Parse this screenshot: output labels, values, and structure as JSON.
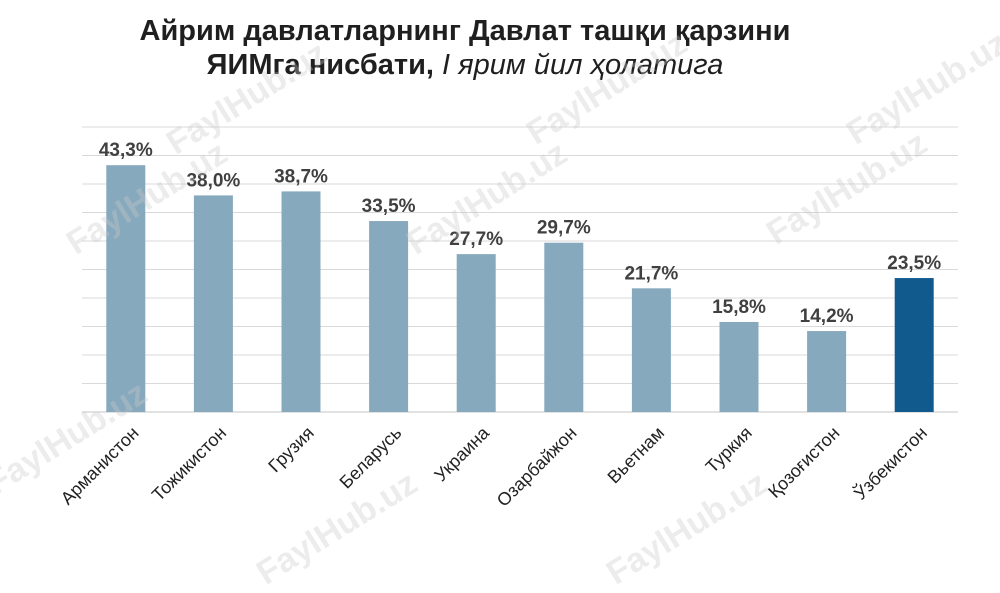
{
  "title": {
    "line1": "Айрим давлатларнинг Давлат ташқи қарзини",
    "line2_bold": "ЯИМга нисбати, ",
    "line2_italic": "I ярим йил ҳолатига"
  },
  "watermark_text": "FaylHub.uz",
  "colors": {
    "bar": "#87a9bd",
    "highlight": "#115a8e",
    "grid": "#d9d9d9"
  },
  "chart_data": {
    "type": "bar",
    "title": "Айрим давлатларнинг Давлат ташқи қарзини ЯИМга нисбати, I ярим йил ҳолатига",
    "categories": [
      "Арманистон",
      "Тожикистон",
      "Грузия",
      "Беларусь",
      "Украина",
      "Озарбайжон",
      "Вьетнам",
      "Туркия",
      "Қозоғистон",
      "Ўзбекистон"
    ],
    "values": [
      43.3,
      38.0,
      38.7,
      33.5,
      27.7,
      29.7,
      21.7,
      15.8,
      14.2,
      23.5
    ],
    "value_labels": [
      "43,3%",
      "38,0%",
      "38,7%",
      "33,5%",
      "27,7%",
      "29,7%",
      "21,7%",
      "15,8%",
      "14,2%",
      "23,5%"
    ],
    "highlight_index": 9,
    "ylim": [
      0,
      50
    ],
    "grid": true,
    "xlabel": "",
    "ylabel": ""
  }
}
